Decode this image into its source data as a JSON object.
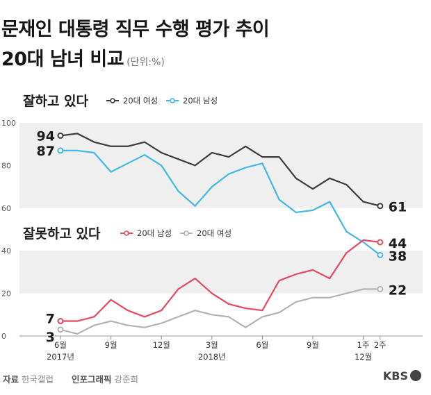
{
  "title_line1": "문재인 대통령 직무 수행 평가 추이",
  "title_line2": "20대 남녀 비교",
  "unit": "(단위:%)",
  "footer": {
    "source_label": "자료",
    "source": "한국갤럽",
    "graphic_label": "인포그래픽",
    "graphic_author": "강준희"
  },
  "brand": "KBS",
  "chart_data": {
    "type": "line",
    "x_ticks": [
      {
        "index": 0,
        "label": "6월",
        "sub": "2017년"
      },
      {
        "index": 3,
        "label": "9월"
      },
      {
        "index": 6,
        "label": "12월"
      },
      {
        "index": 9,
        "label": "3월",
        "sub": "2018년"
      },
      {
        "index": 12,
        "label": "6월"
      },
      {
        "index": 15,
        "label": "9월"
      },
      {
        "index": 18,
        "label": "1주",
        "sub": "12월"
      },
      {
        "index": 19,
        "label": "2주"
      }
    ],
    "x_positions": [
      0,
      1,
      2,
      3,
      4,
      5,
      6,
      7,
      8,
      9,
      10,
      11,
      12,
      13,
      14,
      15,
      16,
      17,
      18,
      19
    ],
    "ylim": [
      0,
      100
    ],
    "yticks": [
      0,
      20,
      40,
      60,
      80,
      100
    ],
    "grid_bands": [
      [
        20,
        40
      ],
      [
        60,
        80
      ],
      [
        80,
        100
      ]
    ],
    "groups": [
      {
        "heading": "잘하고 있다",
        "series": [
          {
            "name": "20대 여성",
            "color": "#3a3a3a",
            "values": [
              94,
              95,
              91,
              89,
              89,
              91,
              86,
              83,
              80,
              86,
              84,
              89,
              84,
              84,
              74,
              69,
              74,
              71,
              63,
              61
            ],
            "start_label": "94",
            "end_label": "61"
          },
          {
            "name": "20대 남성",
            "color": "#3fb8e6",
            "values": [
              87,
              87,
              86,
              77,
              81,
              85,
              80,
              68,
              61,
              70,
              76,
              79,
              81,
              64,
              58,
              59,
              63,
              49,
              44,
              38
            ],
            "start_label": "87",
            "end_label": "38"
          }
        ]
      },
      {
        "heading": "잘못하고 있다",
        "series": [
          {
            "name": "20대 남성",
            "color": "#e8475e",
            "values": [
              7,
              7,
              9,
              17,
              12,
              9,
              12,
              22,
              27,
              20,
              15,
              13,
              12,
              26,
              29,
              31,
              27,
              39,
              45,
              44
            ],
            "start_label": "7",
            "end_label": "44"
          },
          {
            "name": "20대 여성",
            "color": "#b2b2b2",
            "values": [
              3,
              1,
              5,
              7,
              5,
              4,
              6,
              9,
              12,
              10,
              9,
              4,
              9,
              11,
              16,
              18,
              18,
              20,
              22,
              22
            ],
            "start_label": "3",
            "end_label": "22"
          }
        ]
      }
    ]
  }
}
